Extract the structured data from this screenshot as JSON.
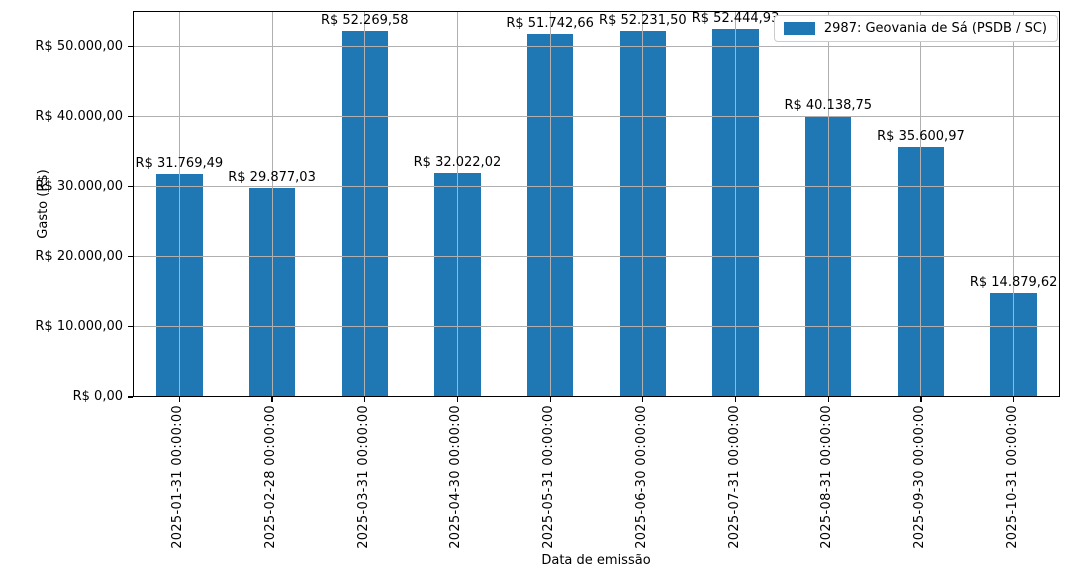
{
  "chart_data": {
    "type": "bar",
    "title": "",
    "xlabel": "Data de emissão",
    "ylabel": "Gasto (R$)",
    "legend": {
      "label": "2987: Geovania de Sá (PSDB / SC)",
      "position": "upper right"
    },
    "bar_color": "#1f77b4",
    "grid": true,
    "grid_color": "#b0b0b0",
    "ylim": [
      0,
      55067
    ],
    "categories": [
      "2025-01-31 00:00:00",
      "2025-02-28 00:00:00",
      "2025-03-31 00:00:00",
      "2025-04-30 00:00:00",
      "2025-05-31 00:00:00",
      "2025-06-30 00:00:00",
      "2025-07-31 00:00:00",
      "2025-08-31 00:00:00",
      "2025-09-30 00:00:00",
      "2025-10-31 00:00:00"
    ],
    "values": [
      31769.49,
      29877.03,
      52269.58,
      32022.02,
      51742.66,
      52231.5,
      52444.93,
      40138.75,
      35600.97,
      14879.62
    ],
    "value_labels": [
      "R$ 31.769,49",
      "R$ 29.877,03",
      "R$ 52.269,58",
      "R$ 32.022,02",
      "R$ 51.742,66",
      "R$ 52.231,50",
      "R$ 52.444,93",
      "R$ 40.138,75",
      "R$ 35.600,97",
      "R$ 14.879,62"
    ],
    "y_ticks": [
      {
        "value": 0,
        "label": "R$ 0,00"
      },
      {
        "value": 10000,
        "label": "R$ 10.000,00"
      },
      {
        "value": 20000,
        "label": "R$ 20.000,00"
      },
      {
        "value": 30000,
        "label": "R$ 30.000,00"
      },
      {
        "value": 40000,
        "label": "R$ 40.000,00"
      },
      {
        "value": 50000,
        "label": "R$ 50.000,00"
      }
    ]
  }
}
